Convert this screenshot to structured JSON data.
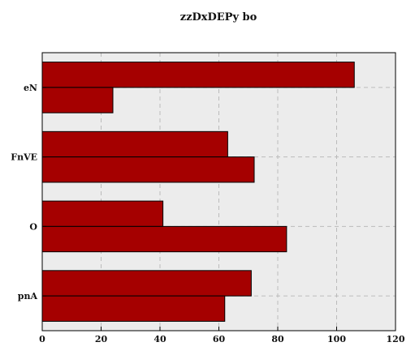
{
  "chart_data": {
    "type": "bar",
    "orientation": "horizontal",
    "title": "zzDxDEPy bo",
    "xlabel": "",
    "ylabel": "",
    "categories": [
      "eN",
      "FnVE",
      "O",
      "pnA"
    ],
    "series": [
      {
        "values": [
          106,
          63,
          41,
          71
        ]
      },
      {
        "values": [
          24,
          72,
          83,
          62
        ]
      }
    ],
    "xlim": [
      0,
      120
    ],
    "xticks": [
      0,
      20,
      40,
      60,
      80,
      100,
      120
    ],
    "grid": true,
    "legend": "none",
    "colors": {
      "bar": "#a50000",
      "bar_edge": "#000000",
      "plot_background": "#ececec",
      "grid": "#bbbbbb"
    }
  }
}
